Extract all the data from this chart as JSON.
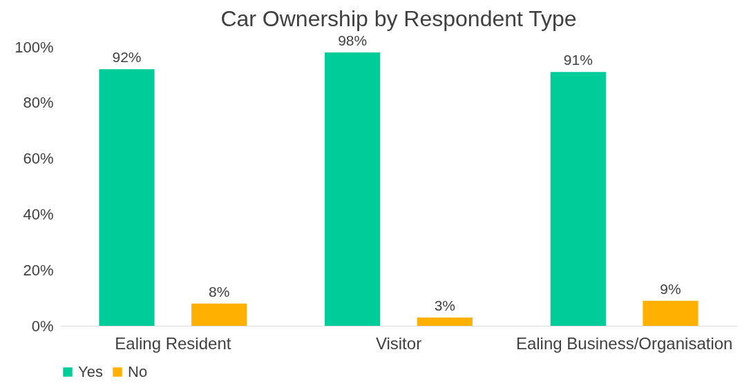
{
  "chart_data": {
    "type": "bar",
    "title": "Car Ownership by Respondent Type",
    "categories": [
      "Ealing Resident",
      "Visitor",
      "Ealing Business/Organisation"
    ],
    "series": [
      {
        "name": "Yes",
        "color": "#00cc99",
        "values": [
          92,
          98,
          91
        ],
        "value_labels": [
          "92%",
          "98%",
          "91%"
        ]
      },
      {
        "name": "No",
        "color": "#ffb000",
        "values": [
          8,
          3,
          9
        ],
        "value_labels": [
          "8%",
          "3%",
          "9%"
        ]
      }
    ],
    "ylim": [
      0,
      100
    ],
    "yticks": [
      {
        "value": 0,
        "label": "0%"
      },
      {
        "value": 20,
        "label": "20%"
      },
      {
        "value": 40,
        "label": "40%"
      },
      {
        "value": 60,
        "label": "60%"
      },
      {
        "value": 80,
        "label": "80%"
      },
      {
        "value": 100,
        "label": "100%"
      }
    ],
    "grid": false,
    "legend": "bottom"
  }
}
